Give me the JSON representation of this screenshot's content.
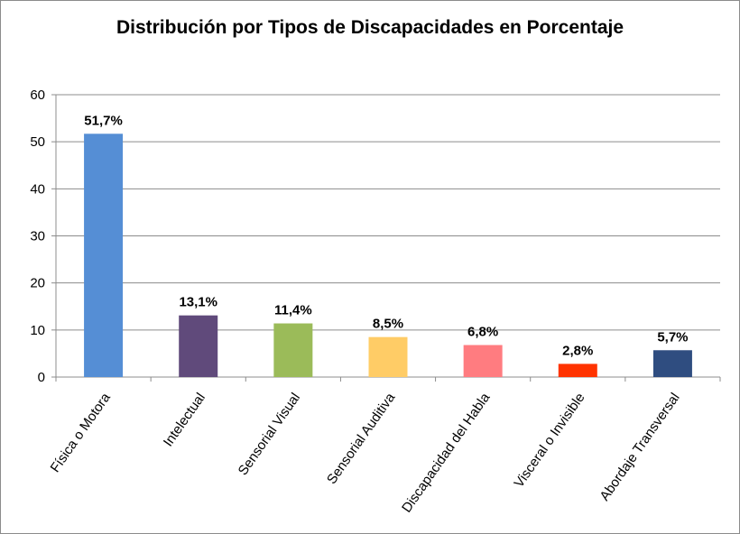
{
  "chart_data": {
    "type": "bar",
    "title": "Distribución por Tipos de Discapacidades en Porcentaje",
    "categories": [
      "Física o Motora",
      "Intelectual",
      "Sensorial Visual",
      "Sensorial Auditiva",
      "Discapacidad del Habla",
      "Visceral o Invisible",
      "Abordaje Transversal"
    ],
    "values": [
      51.7,
      13.1,
      11.4,
      8.5,
      6.8,
      2.8,
      5.7
    ],
    "data_labels": [
      "51,7%",
      "13,1%",
      "11,4%",
      "8,5%",
      "6,8%",
      "2,8%",
      "5,7%"
    ],
    "colors": [
      "#558ed5",
      "#604a7b",
      "#9bbb59",
      "#ffcc66",
      "#ff7c80",
      "#ff3300",
      "#2f4d80"
    ],
    "yticks": [
      "0",
      "10",
      "20",
      "30",
      "40",
      "50",
      "60"
    ],
    "ylim": [
      0,
      60
    ],
    "grid": true,
    "legend": "none"
  }
}
